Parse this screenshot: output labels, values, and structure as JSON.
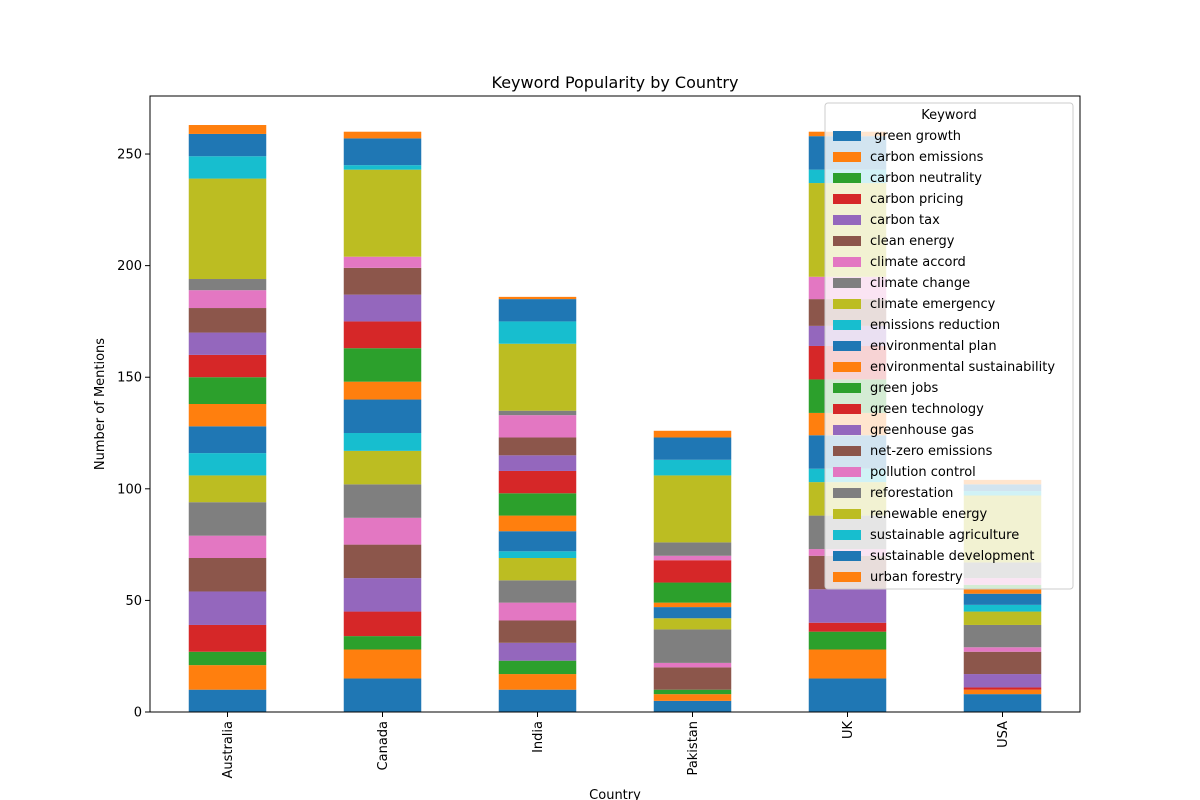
{
  "chart_data": {
    "type": "bar",
    "stacked": true,
    "title": "Keyword Popularity by Country",
    "xlabel": "Country",
    "ylabel": "Number of Mentions",
    "ylim": [
      0,
      276
    ],
    "yticks": [
      0,
      50,
      100,
      150,
      200,
      250
    ],
    "legend_title": "Keyword",
    "legend_position": "top-right",
    "categories": [
      "Australia",
      "Canada",
      "India",
      "Pakistan",
      "UK",
      "USA"
    ],
    "series": [
      {
        "name": " green growth",
        "color": "#1f77b4",
        "values": [
          10,
          15,
          10,
          5,
          15,
          8
        ]
      },
      {
        "name": "carbon emissions",
        "color": "#ff7f0e",
        "values": [
          11,
          13,
          7,
          3,
          13,
          2
        ]
      },
      {
        "name": "carbon neutrality",
        "color": "#2ca02c",
        "values": [
          6,
          6,
          6,
          2,
          8,
          0
        ]
      },
      {
        "name": "carbon pricing",
        "color": "#d62728",
        "values": [
          12,
          11,
          0,
          0,
          4,
          1
        ]
      },
      {
        "name": "carbon tax",
        "color": "#9467bd",
        "values": [
          15,
          15,
          8,
          0,
          15,
          6
        ]
      },
      {
        "name": "clean energy",
        "color": "#8c564b",
        "values": [
          15,
          15,
          10,
          10,
          15,
          10
        ]
      },
      {
        "name": "climate accord",
        "color": "#e377c2",
        "values": [
          10,
          12,
          8,
          2,
          3,
          2
        ]
      },
      {
        "name": "climate change",
        "color": "#7f7f7f",
        "values": [
          15,
          15,
          10,
          15,
          15,
          10
        ]
      },
      {
        "name": "climate emergency",
        "color": "#bcbd22",
        "values": [
          12,
          15,
          10,
          5,
          15,
          6
        ]
      },
      {
        "name": "emissions reduction",
        "color": "#17becf",
        "values": [
          10,
          8,
          3,
          0,
          6,
          3
        ]
      },
      {
        "name": "environmental plan",
        "color": "#1f77b4",
        "values": [
          12,
          15,
          9,
          5,
          15,
          5
        ]
      },
      {
        "name": "environmental sustainability",
        "color": "#ff7f0e",
        "values": [
          10,
          8,
          7,
          2,
          10,
          2
        ]
      },
      {
        "name": "green jobs",
        "color": "#2ca02c",
        "values": [
          12,
          15,
          10,
          9,
          15,
          2
        ]
      },
      {
        "name": "green technology",
        "color": "#d62728",
        "values": [
          10,
          12,
          10,
          10,
          15,
          0
        ]
      },
      {
        "name": "greenhouse gas",
        "color": "#9467bd",
        "values": [
          10,
          12,
          7,
          0,
          9,
          0
        ]
      },
      {
        "name": "net-zero emissions",
        "color": "#8c564b",
        "values": [
          11,
          12,
          8,
          0,
          12,
          0
        ]
      },
      {
        "name": "pollution control",
        "color": "#e377c2",
        "values": [
          8,
          5,
          10,
          2,
          10,
          3
        ]
      },
      {
        "name": "reforestation",
        "color": "#7f7f7f",
        "values": [
          5,
          0,
          2,
          6,
          0,
          7
        ]
      },
      {
        "name": "renewable energy",
        "color": "#bcbd22",
        "values": [
          45,
          39,
          30,
          30,
          42,
          30
        ]
      },
      {
        "name": "sustainable agriculture",
        "color": "#17becf",
        "values": [
          10,
          2,
          10,
          7,
          6,
          2
        ]
      },
      {
        "name": "sustainable development",
        "color": "#1f77b4",
        "values": [
          10,
          12,
          10,
          10,
          15,
          3
        ]
      },
      {
        "name": "urban forestry",
        "color": "#ff7f0e",
        "values": [
          4,
          3,
          1,
          3,
          2,
          2
        ]
      }
    ]
  }
}
